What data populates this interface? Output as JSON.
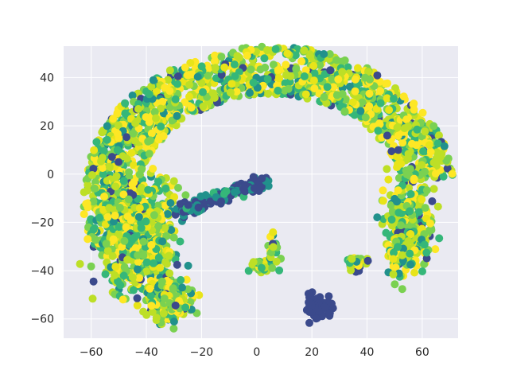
{
  "chart_data": {
    "type": "scatter",
    "title": "",
    "xlabel": "",
    "ylabel": "",
    "xlim": [
      -70,
      73
    ],
    "ylim": [
      -68,
      53
    ],
    "xticks": [
      -60,
      -40,
      -20,
      0,
      20,
      40,
      60
    ],
    "yticks": [
      -60,
      -40,
      -20,
      0,
      20,
      40
    ],
    "xtick_labels": [
      "−60",
      "−40",
      "−20",
      "0",
      "20",
      "40",
      "60"
    ],
    "ytick_labels": [
      "−60",
      "−40",
      "−20",
      "0",
      "20",
      "40"
    ],
    "grid": true,
    "legend": "none",
    "colormap": "viridis",
    "style": {
      "background": "#eaeaf2",
      "grid_color": "#ffffff",
      "palette": [
        "#3b4a8c",
        "#21918c",
        "#35b779",
        "#7ad151",
        "#bddf26",
        "#fde725",
        "#e8e419"
      ]
    },
    "clusters": [
      {
        "kind": "arc",
        "center": [
          5,
          -10
        ],
        "rx": 58,
        "ry": 53,
        "angle_from_deg": 8,
        "angle_to_deg": 200,
        "thickness": 20,
        "n": 1500,
        "color_mix": "yellow-green",
        "desc": "main arc cluster"
      },
      {
        "kind": "blob",
        "center": [
          -43,
          -25
        ],
        "sx": 9,
        "sy": 16,
        "n": 700,
        "color_mix": "yellow-green",
        "desc": "left lobe"
      },
      {
        "kind": "blob",
        "center": [
          -32,
          -52
        ],
        "sx": 6,
        "sy": 6,
        "n": 250,
        "color_mix": "yellow-green",
        "desc": "lower left lobe"
      },
      {
        "kind": "blob",
        "center": [
          55,
          -20
        ],
        "sx": 6,
        "sy": 12,
        "n": 300,
        "color_mix": "yellow-green",
        "desc": "right lobe"
      },
      {
        "kind": "band",
        "from": [
          -28,
          -16
        ],
        "to": [
          2,
          -3
        ],
        "width": 5,
        "n": 160,
        "color_mix": "purple-teal",
        "desc": "inner band"
      },
      {
        "kind": "blob",
        "center": [
          22,
          -55
        ],
        "sx": 3.5,
        "sy": 3.5,
        "n": 70,
        "color_mix": "purple",
        "desc": "bottom purple cluster"
      },
      {
        "kind": "blob",
        "center": [
          2,
          -38
        ],
        "sx": 3,
        "sy": 2,
        "n": 35,
        "color_mix": "yellow-green",
        "desc": "small cluster"
      },
      {
        "kind": "blob",
        "center": [
          6,
          -32
        ],
        "sx": 1.5,
        "sy": 5,
        "n": 25,
        "color_mix": "yellow-green",
        "desc": "small cluster"
      },
      {
        "kind": "blob",
        "center": [
          36,
          -37
        ],
        "sx": 3,
        "sy": 2.5,
        "n": 35,
        "color_mix": "yellow-green",
        "desc": "small cluster"
      },
      {
        "kind": "blob",
        "center": [
          52,
          -35
        ],
        "sx": 3,
        "sy": 6,
        "n": 50,
        "color_mix": "yellow-green",
        "desc": "small cluster"
      }
    ]
  }
}
